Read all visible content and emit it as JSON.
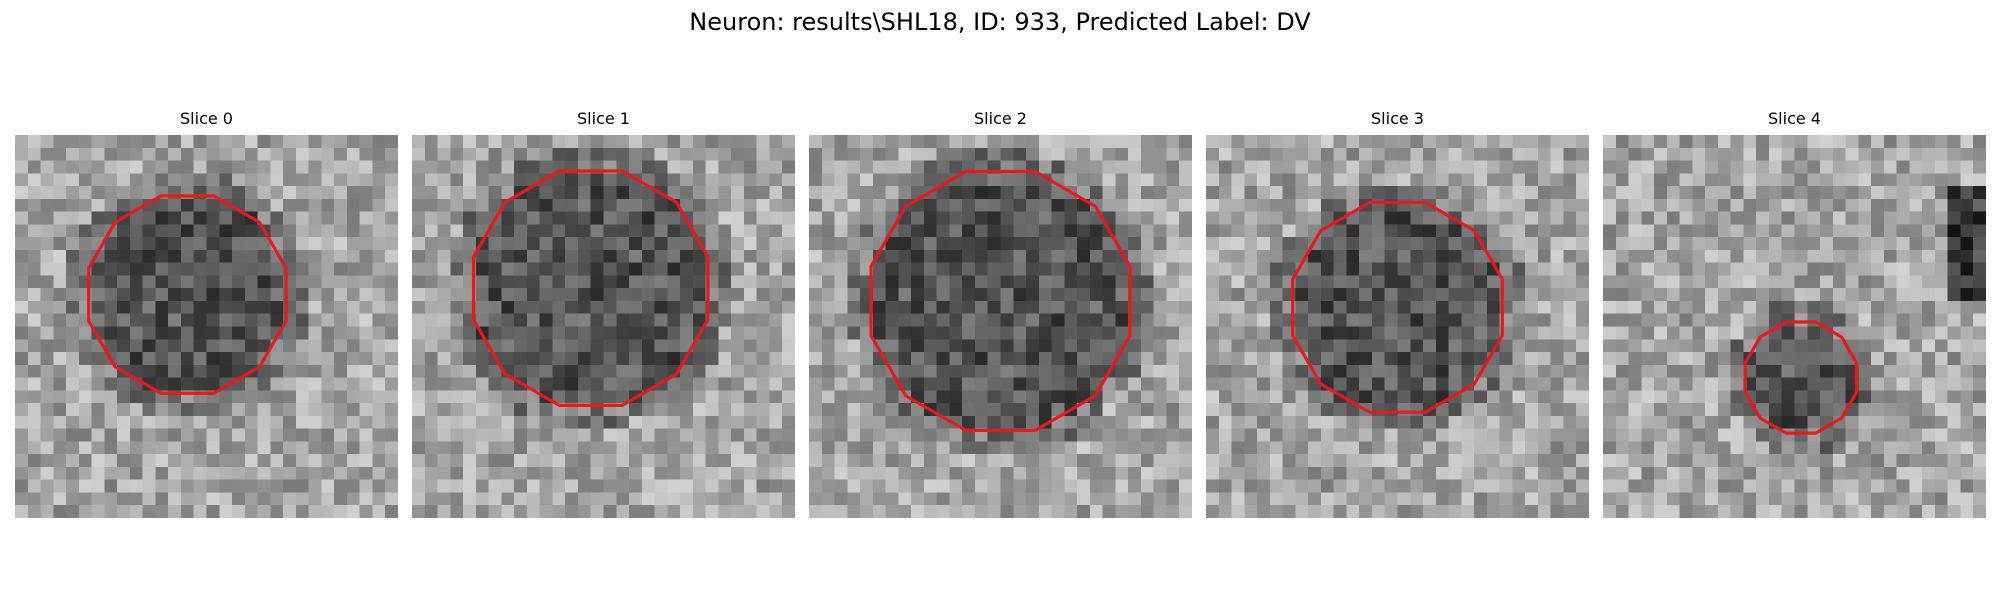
{
  "figure": {
    "title": "Neuron: results\\SHL18, ID: 933, Predicted Label: DV"
  },
  "panels": [
    {
      "title": "Slice 0",
      "contour_color": "#e8191c"
    },
    {
      "title": "Slice 1",
      "contour_color": "#e8191c"
    },
    {
      "title": "Slice 2",
      "contour_color": "#e8191c"
    },
    {
      "title": "Slice 3",
      "contour_color": "#e8191c"
    },
    {
      "title": "Slice 4",
      "contour_color": "#e8191c"
    }
  ]
}
